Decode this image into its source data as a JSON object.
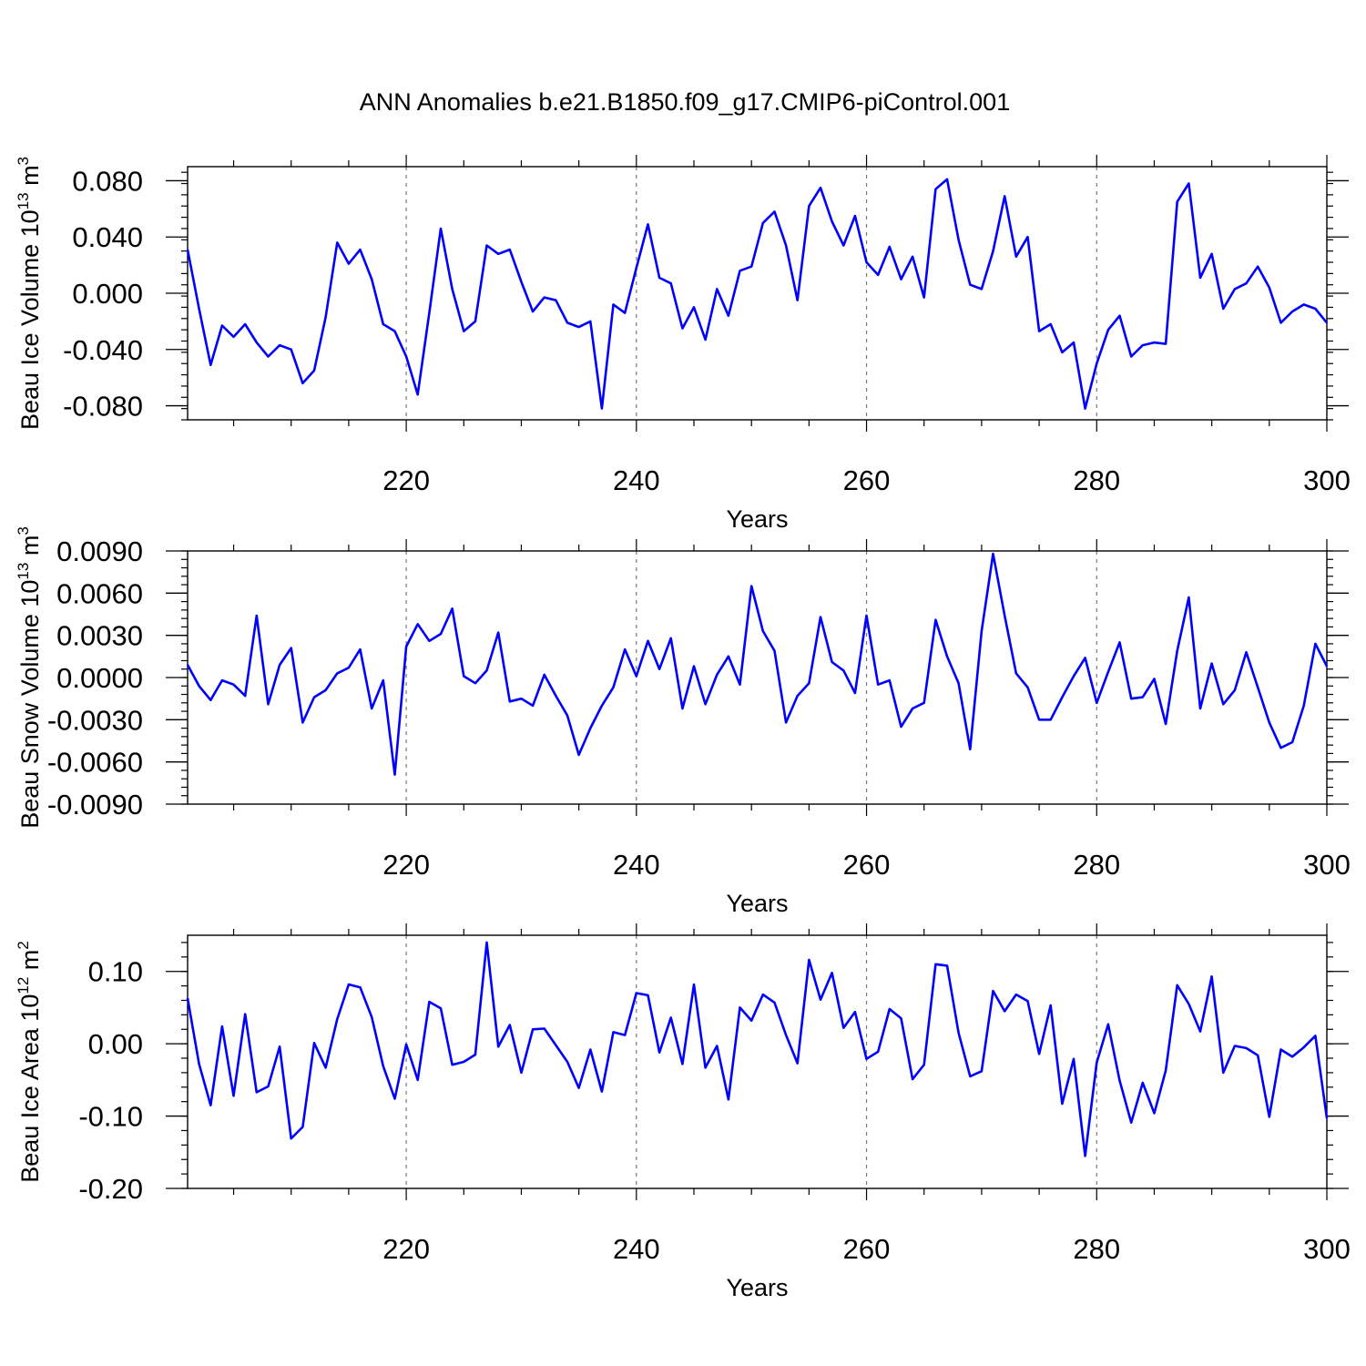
{
  "title": "ANN Anomalies b.e21.B1850.f09_g17.CMIP6-piControl.001",
  "line_color": "#0000ff",
  "chart_data": [
    {
      "type": "line",
      "ylabel_main": "Beau Ice Volume 10",
      "ylabel_sup": "13",
      "ylabel_unit": " m",
      "ylabel_unit_sup": "3",
      "xlabel": "Years",
      "xlim": [
        201,
        300
      ],
      "ylim": [
        -0.09,
        0.09
      ],
      "xticks": [
        220,
        240,
        260,
        280,
        300
      ],
      "xtick_labels": [
        "220",
        "240",
        "260",
        "280",
        "300"
      ],
      "yticks": [
        -0.08,
        -0.04,
        0.0,
        0.04,
        0.08
      ],
      "ytick_labels": [
        "-0.080",
        "-0.040",
        "0.000",
        "0.040",
        "0.080"
      ],
      "yminor_step": 0.008,
      "gridlines_x": [
        220,
        240,
        260,
        280
      ],
      "x_start": 201,
      "values": [
        0.031,
        -0.011,
        -0.051,
        -0.023,
        -0.031,
        -0.022,
        -0.035,
        -0.045,
        -0.037,
        -0.04,
        -0.064,
        -0.055,
        -0.017,
        0.036,
        0.021,
        0.031,
        0.01,
        -0.022,
        -0.027,
        -0.045,
        -0.072,
        -0.014,
        0.046,
        0.003,
        -0.027,
        -0.02,
        0.034,
        0.028,
        0.031,
        0.008,
        -0.013,
        -0.003,
        -0.005,
        -0.021,
        -0.024,
        -0.02,
        -0.082,
        -0.008,
        -0.014,
        0.018,
        0.049,
        0.011,
        0.007,
        -0.025,
        -0.01,
        -0.033,
        0.003,
        -0.016,
        0.016,
        0.019,
        0.05,
        0.058,
        0.034,
        -0.005,
        0.062,
        0.075,
        0.051,
        0.034,
        0.055,
        0.022,
        0.013,
        0.033,
        0.01,
        0.026,
        -0.003,
        0.074,
        0.081,
        0.038,
        0.006,
        0.003,
        0.03,
        0.069,
        0.026,
        0.04,
        -0.027,
        -0.022,
        -0.042,
        -0.035,
        -0.082,
        -0.05,
        -0.026,
        -0.016,
        -0.045,
        -0.037,
        -0.035,
        -0.036,
        0.065,
        0.078,
        0.011,
        0.028,
        -0.011,
        0.003,
        0.007,
        0.019,
        0.004,
        -0.021,
        -0.013,
        -0.008,
        -0.011,
        -0.021
      ]
    },
    {
      "type": "line",
      "ylabel_main": "Beau Snow Volume 10",
      "ylabel_sup": "13",
      "ylabel_unit": " m",
      "ylabel_unit_sup": "3",
      "xlabel": "Years",
      "xlim": [
        201,
        300
      ],
      "ylim": [
        -0.009,
        0.009
      ],
      "xticks": [
        220,
        240,
        260,
        280,
        300
      ],
      "xtick_labels": [
        "220",
        "240",
        "260",
        "280",
        "300"
      ],
      "yticks": [
        -0.009,
        -0.006,
        -0.003,
        0.0,
        0.003,
        0.006,
        0.009
      ],
      "ytick_labels": [
        "-0.0090",
        "-0.0060",
        "-0.0030",
        "0.0000",
        "0.0030",
        "0.0060",
        "0.0090"
      ],
      "yminor_step": 0.0006,
      "gridlines_x": [
        220,
        240,
        260,
        280
      ],
      "x_start": 201,
      "values": [
        0.0009,
        -0.0006,
        -0.0016,
        -0.0002,
        -0.0005,
        -0.0013,
        0.0044,
        -0.0019,
        0.0009,
        0.0021,
        -0.0032,
        -0.0014,
        -0.0009,
        0.0003,
        0.0007,
        0.002,
        -0.0022,
        -0.0002,
        -0.0069,
        0.0022,
        0.0038,
        0.0026,
        0.0031,
        0.0049,
        0.0001,
        -0.0004,
        0.0005,
        0.0032,
        -0.0017,
        -0.0015,
        -0.002,
        0.0002,
        -0.0013,
        -0.0027,
        -0.0055,
        -0.0036,
        -0.002,
        -0.0007,
        0.002,
        0.0001,
        0.0026,
        0.0006,
        0.0028,
        -0.0022,
        0.0008,
        -0.0019,
        0.0002,
        0.0015,
        -0.0005,
        0.0065,
        0.0033,
        0.0019,
        -0.0032,
        -0.0013,
        -0.0004,
        0.0043,
        0.0011,
        0.0005,
        -0.0011,
        0.0044,
        -0.0005,
        -0.0002,
        -0.0035,
        -0.0022,
        -0.0018,
        0.0041,
        0.0015,
        -0.0004,
        -0.0051,
        0.0033,
        0.0088,
        0.0044,
        0.0003,
        -0.0007,
        -0.003,
        -0.003,
        -0.0014,
        0.0001,
        0.0014,
        -0.0018,
        0.0004,
        0.0025,
        -0.0015,
        -0.0014,
        -0.0001,
        -0.0033,
        0.0019,
        0.0057,
        -0.0022,
        0.001,
        -0.0019,
        -0.0009,
        0.0018,
        -0.0007,
        -0.0032,
        -0.005,
        -0.0046,
        -0.002,
        0.0024,
        0.0008
      ]
    },
    {
      "type": "line",
      "ylabel_main": "Beau Ice Area 10",
      "ylabel_sup": "12",
      "ylabel_unit": " m",
      "ylabel_unit_sup": "2",
      "xlabel": "Years",
      "xlim": [
        201,
        300
      ],
      "ylim": [
        -0.2,
        0.15
      ],
      "xticks": [
        220,
        240,
        260,
        280,
        300
      ],
      "xtick_labels": [
        "220",
        "240",
        "260",
        "280",
        "300"
      ],
      "yticks": [
        -0.2,
        -0.1,
        0.0,
        0.1
      ],
      "ytick_labels": [
        "-0.20",
        "-0.10",
        "0.00",
        "0.10"
      ],
      "yminor_step": 0.02,
      "gridlines_x": [
        220,
        240,
        260,
        280
      ],
      "x_start": 201,
      "values": [
        0.063,
        -0.028,
        -0.085,
        0.024,
        -0.072,
        0.041,
        -0.067,
        -0.059,
        -0.004,
        -0.131,
        -0.115,
        0.001,
        -0.033,
        0.034,
        0.082,
        0.078,
        0.037,
        -0.031,
        -0.076,
        -0.001,
        -0.05,
        0.058,
        0.049,
        -0.029,
        -0.025,
        -0.015,
        0.14,
        -0.004,
        0.026,
        -0.04,
        0.02,
        0.021,
        -0.002,
        -0.025,
        -0.061,
        -0.008,
        -0.066,
        0.016,
        0.012,
        0.07,
        0.067,
        -0.012,
        0.036,
        -0.028,
        0.082,
        -0.033,
        -0.003,
        -0.077,
        0.05,
        0.032,
        0.068,
        0.057,
        0.012,
        -0.027,
        0.116,
        0.061,
        0.098,
        0.022,
        0.044,
        -0.021,
        -0.011,
        0.048,
        0.035,
        -0.049,
        -0.029,
        0.11,
        0.108,
        0.015,
        -0.045,
        -0.038,
        0.073,
        0.045,
        0.068,
        0.059,
        -0.014,
        0.053,
        -0.083,
        -0.021,
        -0.155,
        -0.026,
        0.027,
        -0.051,
        -0.109,
        -0.054,
        -0.096,
        -0.037,
        0.081,
        0.055,
        0.017,
        0.093,
        -0.04,
        -0.003,
        -0.006,
        -0.016,
        -0.101,
        -0.008,
        -0.018,
        -0.005,
        0.011,
        -0.103
      ]
    }
  ]
}
